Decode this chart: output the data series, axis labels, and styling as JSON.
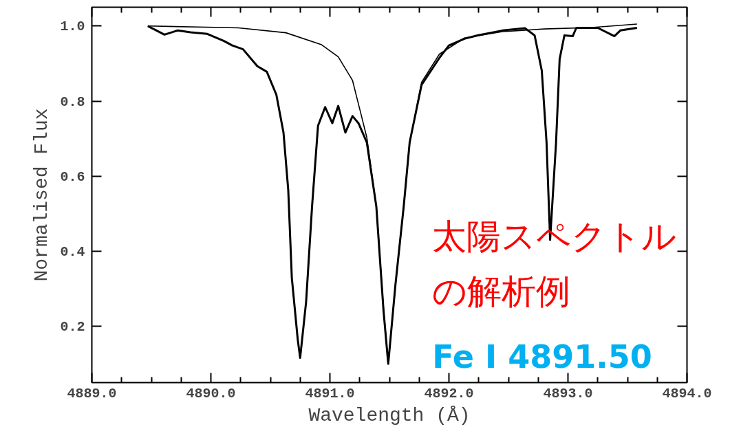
{
  "chart_data": {
    "type": "line",
    "xlabel": "Wavelength (Å)",
    "ylabel": "Normalised Flux",
    "annotations": [
      "太陽スペクトル",
      "の解析例",
      "Fe I 4891.50"
    ],
    "xlim": [
      4889.0,
      4894.0
    ],
    "ylim": [
      0.05,
      1.05
    ],
    "xticks": [
      {
        "value": 4889,
        "label": "4889.0"
      },
      {
        "value": 4889.25,
        "label": null
      },
      {
        "value": 4889.5,
        "label": null
      },
      {
        "value": 4889.75,
        "label": null
      },
      {
        "value": 4890,
        "label": "4890.0"
      },
      {
        "value": 4890.25,
        "label": null
      },
      {
        "value": 4890.5,
        "label": null
      },
      {
        "value": 4890.75,
        "label": null
      },
      {
        "value": 4891,
        "label": "4891.0"
      },
      {
        "value": 4891.25,
        "label": null
      },
      {
        "value": 4891.5,
        "label": null
      },
      {
        "value": 4891.75,
        "label": null
      },
      {
        "value": 4892,
        "label": "4892.0"
      },
      {
        "value": 4892.25,
        "label": null
      },
      {
        "value": 4892.5,
        "label": null
      },
      {
        "value": 4892.75,
        "label": null
      },
      {
        "value": 4893,
        "label": "4893.0"
      },
      {
        "value": 4893.25,
        "label": null
      },
      {
        "value": 4893.5,
        "label": null
      },
      {
        "value": 4893.75,
        "label": null
      },
      {
        "value": 4894,
        "label": "4894.0"
      }
    ],
    "yticks": [
      {
        "value": 0.2,
        "label": "0.2"
      },
      {
        "value": 0.4,
        "label": "0.4"
      },
      {
        "value": 0.6,
        "label": "0.6"
      },
      {
        "value": 0.8,
        "label": "0.8"
      },
      {
        "value": 1.0,
        "label": "1.0"
      }
    ],
    "grid": false,
    "marker": "none",
    "line_style": "solid",
    "series": [
      {
        "color": "#000000",
        "x": [
          4889.47,
          4889.61,
          4889.72,
          4889.83,
          4889.97,
          4890.11,
          4890.18,
          4890.27,
          4890.39,
          4890.47,
          4890.55,
          4890.61,
          4890.65,
          4890.68,
          4890.73,
          4890.75,
          4890.8,
          4890.85,
          4890.9,
          4890.96,
          4891.02,
          4891.07,
          4891.13,
          4891.19,
          4891.24,
          4891.31,
          4891.39,
          4891.45,
          4891.49,
          4891.55,
          4891.62,
          4891.67,
          4891.77,
          4891.92,
          4892.0,
          4892.13,
          4892.24,
          4892.45,
          4892.64,
          4892.72,
          4892.78,
          4892.82,
          4892.85,
          4892.9,
          4892.93,
          4892.97,
          4893.04,
          4893.07,
          4893.25,
          4893.39,
          4893.44,
          4893.58
        ],
        "values": [
          1.0,
          0.977,
          0.988,
          0.983,
          0.979,
          0.96,
          0.948,
          0.938,
          0.893,
          0.878,
          0.817,
          0.716,
          0.563,
          0.329,
          0.164,
          0.116,
          0.265,
          0.519,
          0.734,
          0.784,
          0.741,
          0.787,
          0.716,
          0.76,
          0.741,
          0.69,
          0.519,
          0.243,
          0.1,
          0.309,
          0.519,
          0.69,
          0.843,
          0.915,
          0.948,
          0.966,
          0.975,
          0.988,
          0.994,
          0.975,
          0.881,
          0.69,
          0.43,
          0.69,
          0.912,
          0.975,
          0.973,
          0.995,
          0.995,
          0.973,
          0.988,
          0.995
        ]
      },
      {
        "color": "#000000",
        "x": [
          4889.47,
          4890.23,
          4890.63,
          4890.93,
          4891.07,
          4891.19,
          4891.27,
          4891.31,
          4891.39,
          4891.45,
          4891.49,
          4891.55,
          4891.62,
          4891.67,
          4891.77,
          4891.92,
          4892.13,
          4892.45,
          4892.8,
          4893.2,
          4893.58
        ],
        "values": [
          1.0,
          0.995,
          0.982,
          0.95,
          0.918,
          0.855,
          0.754,
          0.703,
          0.52,
          0.25,
          0.1,
          0.31,
          0.519,
          0.69,
          0.85,
          0.925,
          0.968,
          0.985,
          0.992,
          0.996,
          1.005
        ]
      }
    ]
  }
}
